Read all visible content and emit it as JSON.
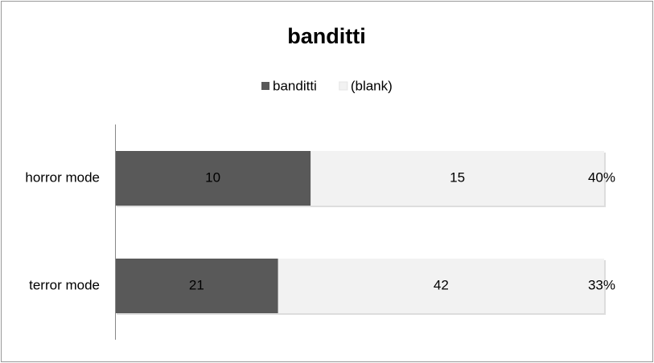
{
  "chart_data": {
    "type": "stacked_bar_100_horizontal",
    "title": "banditti",
    "categories": [
      "horror mode",
      "terror mode"
    ],
    "series": [
      {
        "name": "banditti",
        "color": "#595959",
        "values": [
          10,
          21
        ]
      },
      {
        "name": "(blank)",
        "color": "#f2f2f2",
        "values": [
          15,
          42
        ]
      }
    ],
    "annotations": [
      "40%",
      "33%"
    ],
    "legend": "top"
  }
}
